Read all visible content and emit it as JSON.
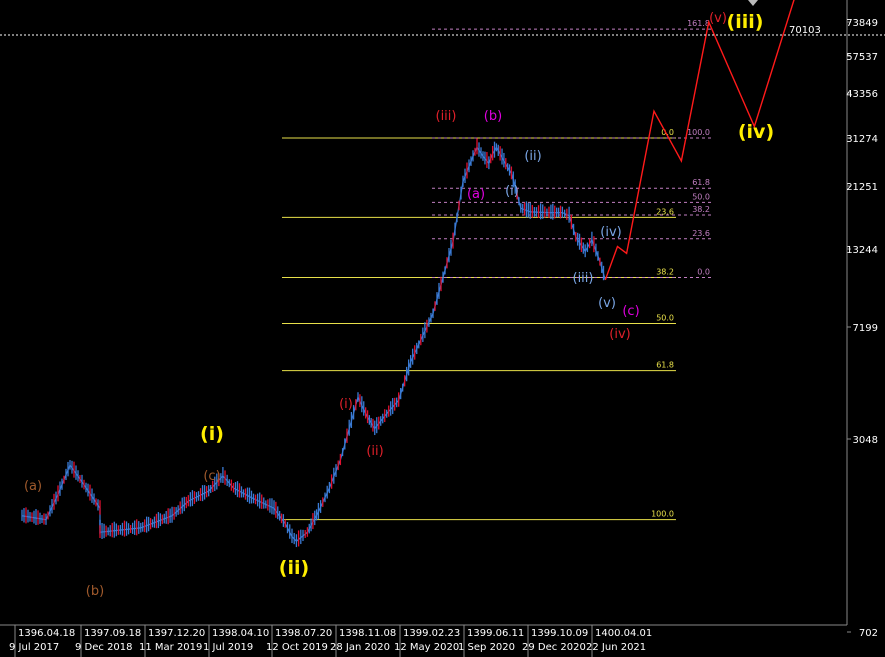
{
  "colors": {
    "background": "#000000",
    "bull_candle": "#3a7bd5",
    "bear_candle": "#e0102f",
    "fib_solid": "#e8e04a",
    "fib_dashed": "#c27fc2",
    "projection": "#ff1a1a",
    "wave_primary": "#ffee00",
    "wave_minor": "#e0202a",
    "wave_abc_early": "#a05a2c",
    "wave_abc_late": "#e000e0",
    "wave_minute": "#7aa6e6"
  },
  "chart_data": {
    "type": "candlestick",
    "title": "",
    "scale": "log",
    "ylim": [
      702,
      100000
    ],
    "y_ticks": [
      "73849",
      "57537",
      "43356",
      "31274",
      "21251",
      "13244",
      "7199",
      "3048",
      "702"
    ],
    "current_price": "70103",
    "x_top_labels": [
      "1396.04.18",
      "1397.09.18",
      "1397.12.20",
      "1398.04.10",
      "1398.07.20",
      "1398.11.08",
      "1399.02.23",
      "1399.06.11",
      "1399.10.09",
      "1400.04.01"
    ],
    "x_bottom_labels": [
      "9 Jul 2017",
      "9 Dec 2018",
      "11 Mar 2019",
      "1 Jul 2019",
      "12 Oct 2019",
      "28 Jan 2020",
      "12 May 2020",
      "1 Sep 2020",
      "29 Dec 2020",
      "22 Jun 2021"
    ],
    "price_path": [
      [
        2017.35,
        1700
      ],
      [
        2017.55,
        1650
      ],
      [
        2017.65,
        2000
      ],
      [
        2017.75,
        2500
      ],
      [
        2017.85,
        2200
      ],
      [
        2018.0,
        1800
      ],
      [
        2018.3,
        1600
      ],
      [
        2018.6,
        1550
      ],
      [
        2018.95,
        1500
      ],
      [
        2019.1,
        1550
      ],
      [
        2019.22,
        1700
      ],
      [
        2019.3,
        1900
      ],
      [
        2019.4,
        2050
      ],
      [
        2019.47,
        2300
      ],
      [
        2019.52,
        2100
      ],
      [
        2019.6,
        1950
      ],
      [
        2019.7,
        1800
      ],
      [
        2019.75,
        1600
      ],
      [
        2019.78,
        1450
      ],
      [
        2019.8,
        1400
      ],
      [
        2019.85,
        1500
      ],
      [
        2019.9,
        1750
      ],
      [
        2019.95,
        2100
      ],
      [
        2020.0,
        2600
      ],
      [
        2020.05,
        3500
      ],
      [
        2020.08,
        4200
      ],
      [
        2020.12,
        3600
      ],
      [
        2020.15,
        3300
      ],
      [
        2020.2,
        3700
      ],
      [
        2020.25,
        4100
      ],
      [
        2020.3,
        5500
      ],
      [
        2020.4,
        8000
      ],
      [
        2020.5,
        14000
      ],
      [
        2020.55,
        22000
      ],
      [
        2020.6,
        27000
      ],
      [
        2020.62,
        29000
      ],
      [
        2020.65,
        27000
      ],
      [
        2020.68,
        25500
      ],
      [
        2020.7,
        27500
      ],
      [
        2020.72,
        29000
      ],
      [
        2020.76,
        26000
      ],
      [
        2020.8,
        23500
      ],
      [
        2020.85,
        18000
      ],
      [
        2020.9,
        17500
      ],
      [
        2021.0,
        17400
      ],
      [
        2021.1,
        17400
      ],
      [
        2021.15,
        17000
      ],
      [
        2021.2,
        14500
      ],
      [
        2021.27,
        13000
      ],
      [
        2021.32,
        14200
      ],
      [
        2021.38,
        12000
      ],
      [
        2021.42,
        10400
      ]
    ],
    "projection_path": [
      [
        2021.42,
        10400
      ],
      [
        2021.5,
        13500
      ],
      [
        2021.55,
        12800
      ],
      [
        2021.7,
        38000
      ],
      [
        2021.85,
        26000
      ],
      [
        2022.0,
        73849
      ],
      [
        2022.25,
        34000
      ],
      [
        2022.5,
        100000
      ]
    ],
    "fib_levels_primary": [
      {
        "label": "0.0",
        "price": 31274
      },
      {
        "label": "23.6",
        "price": 16800
      },
      {
        "label": "38.2",
        "price": 10600
      },
      {
        "label": "50.0",
        "price": 7400
      },
      {
        "label": "61.8",
        "price": 5150
      },
      {
        "label": "100.0",
        "price": 1650
      }
    ],
    "fib_levels_secondary": [
      {
        "label": "161.8",
        "price": 70103
      },
      {
        "label": "100.0",
        "price": 31274
      },
      {
        "label": "61.8",
        "price": 20900
      },
      {
        "label": "50.0",
        "price": 18800
      },
      {
        "label": "38.2",
        "price": 17100
      },
      {
        "label": "23.6",
        "price": 14300
      },
      {
        "label": "0.0",
        "price": 10600
      }
    ],
    "wave_labels": [
      {
        "text": "(a)",
        "color_key": "wave_abc_early"
      },
      {
        "text": "(b)",
        "color_key": "wave_abc_early"
      },
      {
        "text": "(c)",
        "color_key": "wave_abc_early"
      },
      {
        "text": "(i)",
        "color_key": "wave_primary"
      },
      {
        "text": "(ii)",
        "color_key": "wave_primary"
      },
      {
        "text": "(i)",
        "color_key": "wave_minor"
      },
      {
        "text": "(ii)",
        "color_key": "wave_minor"
      },
      {
        "text": "(iii)",
        "color_key": "wave_minor"
      },
      {
        "text": "(a)",
        "color_key": "wave_abc_late"
      },
      {
        "text": "(b)",
        "color_key": "wave_abc_late"
      },
      {
        "text": "(c)",
        "color_key": "wave_abc_late"
      },
      {
        "text": "(i)",
        "color_key": "wave_minute"
      },
      {
        "text": "(ii)",
        "color_key": "wave_minute"
      },
      {
        "text": "(iii)",
        "color_key": "wave_minute"
      },
      {
        "text": "(iv)",
        "color_key": "wave_minute"
      },
      {
        "text": "(v)",
        "color_key": "wave_minute"
      },
      {
        "text": "(iv)",
        "color_key": "wave_minor"
      },
      {
        "text": "(v)",
        "color_key": "wave_minor"
      },
      {
        "text": "(iii)",
        "color_key": "wave_primary"
      },
      {
        "text": "(iv)",
        "color_key": "wave_primary"
      }
    ]
  }
}
